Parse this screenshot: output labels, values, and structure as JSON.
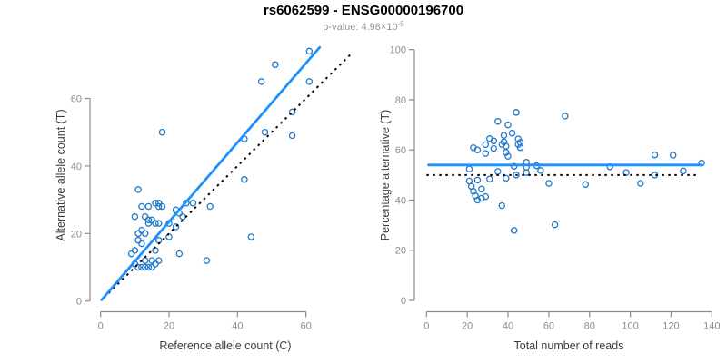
{
  "header": {
    "title": "rs6062599 - ENSG00000196700",
    "pvalue_label": "p-value: 4.98×10",
    "pvalue_exponent": "-5"
  },
  "colors": {
    "point": "#2478C6",
    "fit_line": "#1E90FF",
    "reference_line": "#000000",
    "axis": "#8C8C8C",
    "tick_label": "#8C8C8C",
    "axis_title": "#3D3D3D",
    "title": "#000000",
    "subtitle": "#969696",
    "background": "#FFFFFF"
  },
  "chart_data": [
    {
      "type": "scatter",
      "panel": "left",
      "xlabel": "Reference allele count (C)",
      "ylabel": "Alternative allele count (T)",
      "xticks": [
        0,
        20,
        40,
        60
      ],
      "yticks": [
        0,
        20,
        40,
        60
      ],
      "xlim": [
        0,
        73
      ],
      "ylim": [
        0,
        76
      ],
      "grid": false,
      "points": [
        [
          61,
          74
        ],
        [
          51,
          70
        ],
        [
          47,
          65
        ],
        [
          61,
          65
        ],
        [
          56,
          56
        ],
        [
          48,
          50
        ],
        [
          42,
          48
        ],
        [
          56,
          49
        ],
        [
          18,
          50
        ],
        [
          42,
          36
        ],
        [
          11,
          33
        ],
        [
          44,
          19
        ],
        [
          27,
          29
        ],
        [
          32,
          28
        ],
        [
          31,
          12
        ],
        [
          23,
          14
        ],
        [
          16,
          29
        ],
        [
          17,
          29
        ],
        [
          17,
          28
        ],
        [
          18,
          28
        ],
        [
          12,
          28
        ],
        [
          14,
          28
        ],
        [
          10,
          25
        ],
        [
          13,
          25
        ],
        [
          14,
          24
        ],
        [
          15,
          24
        ],
        [
          14,
          23
        ],
        [
          16,
          23
        ],
        [
          17,
          23
        ],
        [
          20,
          23
        ],
        [
          23,
          26
        ],
        [
          25,
          29
        ],
        [
          22,
          27
        ],
        [
          24,
          25
        ],
        [
          22,
          22
        ],
        [
          20,
          19
        ],
        [
          11,
          20
        ],
        [
          12,
          21
        ],
        [
          13,
          20
        ],
        [
          11,
          18
        ],
        [
          12,
          17
        ],
        [
          17,
          18
        ],
        [
          16,
          15
        ],
        [
          10,
          15
        ],
        [
          13,
          12
        ],
        [
          15,
          12
        ],
        [
          17,
          12
        ],
        [
          16,
          11
        ],
        [
          10,
          11
        ],
        [
          11,
          10
        ],
        [
          12,
          10
        ],
        [
          13,
          10
        ],
        [
          14,
          10
        ],
        [
          15,
          10
        ],
        [
          9,
          14
        ]
      ],
      "fit_line": {
        "style": "solid",
        "slope": 1.174,
        "intercept": 0,
        "x_start": 0.3,
        "x_end": 64
      },
      "identity_line": {
        "style": "dotted",
        "slope": 1,
        "intercept": 0,
        "x_start": 1,
        "x_end": 73
      }
    },
    {
      "type": "scatter",
      "panel": "right",
      "xlabel": "Total number of reads",
      "ylabel": "Percentage alternative (T)",
      "xticks": [
        0,
        20,
        40,
        60,
        80,
        100,
        120,
        140
      ],
      "yticks": [
        0,
        20,
        40,
        60,
        80,
        100
      ],
      "xlim": [
        0,
        140
      ],
      "ylim": [
        0,
        100
      ],
      "grid": false,
      "points": [
        [
          135,
          54.8
        ],
        [
          121,
          57.9
        ],
        [
          112,
          58.0
        ],
        [
          126,
          51.6
        ],
        [
          112,
          50.0
        ],
        [
          98,
          51.0
        ],
        [
          90,
          53.3
        ],
        [
          105,
          46.7
        ],
        [
          68,
          73.5
        ],
        [
          78,
          46.2
        ],
        [
          44,
          75.0
        ],
        [
          63,
          30.2
        ],
        [
          56,
          51.8
        ],
        [
          60,
          46.7
        ],
        [
          43,
          27.9
        ],
        [
          37,
          37.8
        ],
        [
          45,
          64.4
        ],
        [
          46,
          63.0
        ],
        [
          45,
          62.2
        ],
        [
          46,
          60.9
        ],
        [
          40,
          70.0
        ],
        [
          42,
          66.7
        ],
        [
          35,
          71.4
        ],
        [
          38,
          65.8
        ],
        [
          38,
          63.2
        ],
        [
          39,
          61.5
        ],
        [
          37,
          62.2
        ],
        [
          39,
          59.0
        ],
        [
          40,
          57.5
        ],
        [
          43,
          53.5
        ],
        [
          49,
          53.1
        ],
        [
          54,
          53.7
        ],
        [
          49,
          55.1
        ],
        [
          49,
          51.0
        ],
        [
          44,
          50.0
        ],
        [
          39,
          48.7
        ],
        [
          31,
          64.5
        ],
        [
          33,
          63.6
        ],
        [
          33,
          60.6
        ],
        [
          29,
          62.1
        ],
        [
          29,
          58.6
        ],
        [
          35,
          51.4
        ],
        [
          31,
          48.4
        ],
        [
          25,
          60.0
        ],
        [
          25,
          48.0
        ],
        [
          27,
          44.4
        ],
        [
          29,
          41.4
        ],
        [
          27,
          40.7
        ],
        [
          21,
          52.4
        ],
        [
          21,
          47.6
        ],
        [
          22,
          45.5
        ],
        [
          23,
          43.5
        ],
        [
          24,
          41.7
        ],
        [
          25,
          40.0
        ],
        [
          23,
          60.9
        ]
      ],
      "fit_line": {
        "style": "solid",
        "y": 54,
        "x_start": 1,
        "x_end": 135
      },
      "null_line": {
        "style": "dotted",
        "y": 50,
        "x_start": 0,
        "x_end": 134
      }
    }
  ]
}
